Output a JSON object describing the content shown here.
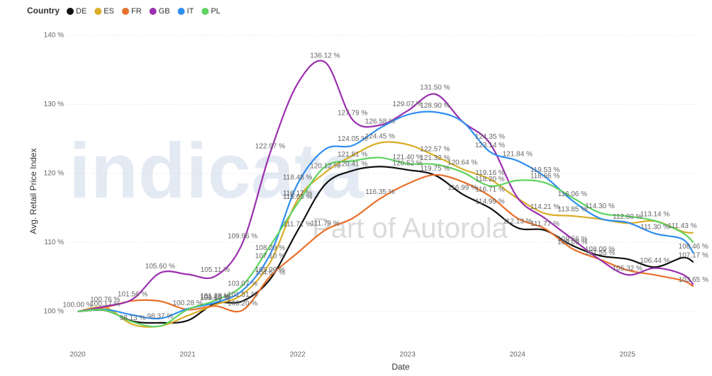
{
  "chart_data": {
    "type": "line",
    "legend_title": "Country",
    "ylabel": "Avg. Retail Price Index",
    "xlabel": "Date",
    "watermark": {
      "brand": "indicata",
      "tagline": "Part of Autorola"
    },
    "x": [
      2020,
      2020.25,
      2020.5,
      2020.75,
      2021,
      2021.25,
      2021.5,
      2021.75,
      2022,
      2022.25,
      2022.5,
      2022.75,
      2023,
      2023.25,
      2023.5,
      2023.75,
      2024,
      2024.25,
      2024.5,
      2024.75,
      2025,
      2025.25,
      2025.5,
      2025.6
    ],
    "xlim": [
      2019.9,
      2025.64
    ],
    "xticks": [
      2020,
      2021,
      2022,
      2023,
      2024,
      2025
    ],
    "ylim": [
      96,
      140
    ],
    "yticks": [
      {
        "value": 100,
        "label": "100 %"
      },
      {
        "value": 110,
        "label": "110 %"
      },
      {
        "value": 120,
        "label": "120 %"
      },
      {
        "value": 130,
        "label": "130 %"
      },
      {
        "value": 140,
        "label": "140 %"
      }
    ],
    "grid": true,
    "legend": "top-left",
    "series": [
      {
        "name": "DE",
        "color": "#111111",
        "values": [
          100.0,
          100.17,
          98.6,
          98.37,
          98.7,
          101.16,
          101.51,
          104.67,
          111.71,
          118.4,
          120.41,
          121.0,
          120.52,
          119.75,
          116.99,
          114.99,
          112.13,
          111.77,
          109.56,
          108.09,
          107.6,
          106.44,
          107.8,
          107.17
        ],
        "value_labels": [
          "100.00 %",
          "100.17 %",
          null,
          "98.37 %",
          null,
          "101.16 %",
          "101.51 %",
          "104.67 %",
          "111.71 %",
          null,
          "120.41 %",
          null,
          "120.52 %",
          "119.75 %",
          "116.99 %",
          "114.99 %",
          "112.13 %",
          "111.77 %",
          "109.56 %",
          "108.09 %",
          null,
          "106.44 %",
          null,
          "107.17 %"
        ]
      },
      {
        "name": "ES",
        "color": "#d9ad26",
        "values": [
          100,
          100.6,
          98.13,
          97.9,
          99.4,
          100.99,
          102.5,
          107.1,
          116.17,
          120.12,
          122.6,
          124.45,
          124.2,
          122.57,
          120.64,
          119.16,
          116.4,
          114.21,
          113.85,
          113.4,
          112.8,
          113.1,
          111.6,
          111.4
        ],
        "value_labels": [
          null,
          null,
          "98.13 %",
          null,
          null,
          "100.99 %",
          null,
          "107.10 %",
          "116.17 %",
          "120.12 %",
          null,
          "124.45 %",
          null,
          "122.57 %",
          "120.64 %",
          "119.16 %",
          null,
          "114.21 %",
          "113.85 %",
          null,
          "112.80 %",
          null,
          null,
          null
        ]
      },
      {
        "name": "FR",
        "color": "#e8702a",
        "values": [
          100,
          100.6,
          101.56,
          101.5,
          100.28,
          100.8,
          100.2,
          105.09,
          108.5,
          111.79,
          113.5,
          116.35,
          118.5,
          119.8,
          118.8,
          116.71,
          113.5,
          112.0,
          109.09,
          107.55,
          106.0,
          105.3,
          104.5,
          103.65
        ],
        "value_labels": [
          null,
          null,
          "101.56 %",
          null,
          "100.28 %",
          null,
          "100.20 %",
          "105.09 %",
          null,
          "111.79 %",
          null,
          "116.35 %",
          null,
          null,
          null,
          "116.71 %",
          null,
          null,
          "109.09 %",
          "107.55 %",
          null,
          null,
          null,
          "103.65 %"
        ]
      },
      {
        "name": "GB",
        "color": "#9b2fae",
        "values": [
          100,
          100.76,
          101.8,
          105.6,
          105.4,
          105.11,
          109.96,
          122.97,
          133.0,
          136.12,
          127.79,
          127.0,
          129.07,
          131.5,
          127.5,
          124.35,
          116.5,
          113.5,
          110.5,
          107.5,
          105.32,
          106.3,
          105.4,
          103.9
        ],
        "value_labels": [
          null,
          "100.76 %",
          null,
          "105.60 %",
          null,
          "105.11 %",
          "109.96 %",
          "122.97 %",
          null,
          "136.12 %",
          "127.79 %",
          null,
          "129.07 %",
          "131.50 %",
          null,
          "124.35 %",
          null,
          null,
          null,
          null,
          "105.32 %",
          null,
          null,
          null
        ]
      },
      {
        "name": "IT",
        "color": "#2e8ef0",
        "values": [
          100,
          100.3,
          99.5,
          99.0,
          100.4,
          101.29,
          103.07,
          108.29,
          118.48,
          123.5,
          124.05,
          126.58,
          128.5,
          128.9,
          127.5,
          123.14,
          121.84,
          119.53,
          116.06,
          113.5,
          112.9,
          111.3,
          110.5,
          108.46
        ],
        "value_labels": [
          null,
          null,
          null,
          null,
          null,
          "101.29 %",
          "103.07 %",
          "108.29 %",
          "118.48 %",
          null,
          "124.05 %",
          "126.58 %",
          null,
          "128.90 %",
          null,
          "123.14 %",
          "121.84 %",
          "119.53 %",
          "116.06 %",
          null,
          null,
          "111.30 %",
          null,
          "108.46 %"
        ]
      },
      {
        "name": "PL",
        "color": "#5fd35f",
        "values": [
          100,
          100.2,
          98.5,
          97.9,
          100.3,
          101.6,
          103.8,
          109.5,
          115.65,
          121.0,
          121.81,
          122.3,
          121.4,
          121.32,
          120.2,
          118.2,
          119.0,
          118.66,
          116.5,
          114.3,
          113.8,
          113.14,
          111.43,
          110.0
        ],
        "value_labels": [
          null,
          null,
          null,
          null,
          null,
          null,
          null,
          null,
          "115.65 %",
          null,
          "121.81 %",
          null,
          "121.40 %",
          "121.32 %",
          null,
          "118.20 %",
          null,
          "118.66 %",
          null,
          "114.30 %",
          null,
          "113.14 %",
          "111.43 %",
          null
        ]
      }
    ]
  }
}
